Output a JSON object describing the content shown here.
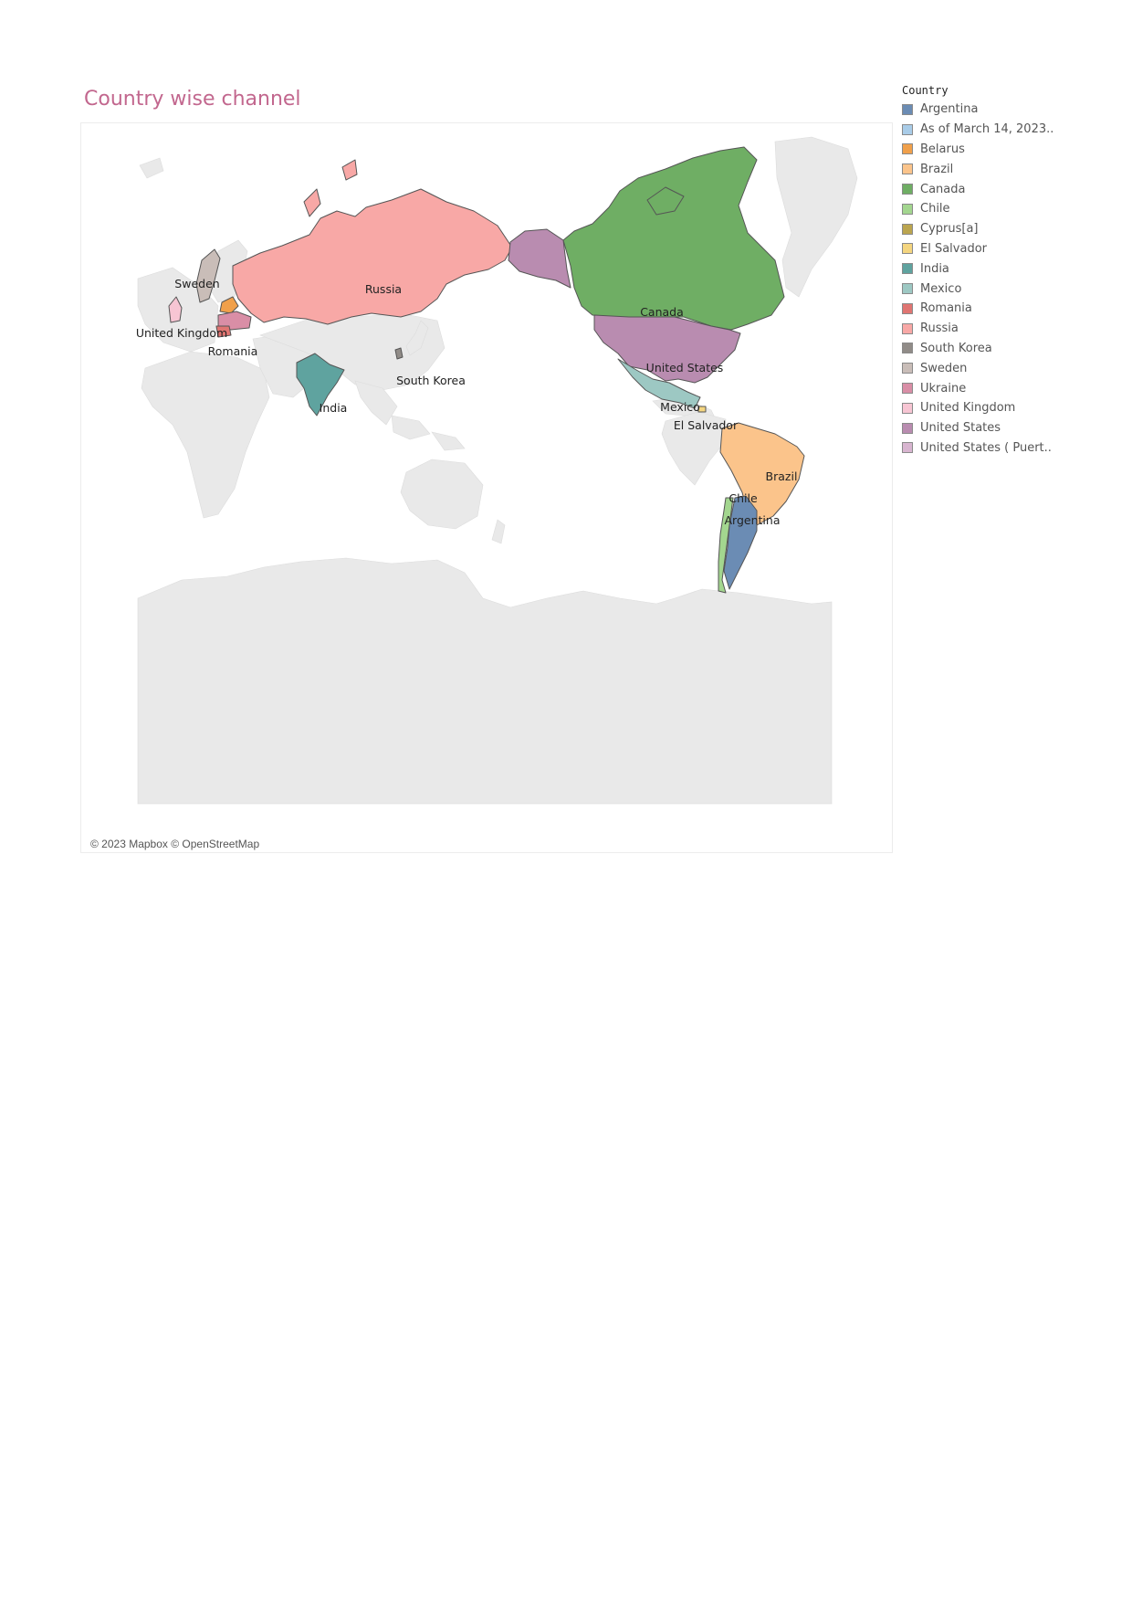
{
  "title": "Country wise channel",
  "attribution": "© 2023 Mapbox © OpenStreetMap",
  "legend": {
    "title": "Country",
    "items": [
      {
        "label": "Argentina",
        "color": "#6b8cb4"
      },
      {
        "label": "As of March 14, 2023..",
        "color": "#a9cce8"
      },
      {
        "label": "Belarus",
        "color": "#f0a04b"
      },
      {
        "label": "Brazil",
        "color": "#fbc48b"
      },
      {
        "label": "Canada",
        "color": "#6fae64"
      },
      {
        "label": "Chile",
        "color": "#a3d68f"
      },
      {
        "label": "Cyprus[a]",
        "color": "#bba54f"
      },
      {
        "label": "El Salvador",
        "color": "#f4d57f"
      },
      {
        "label": "India",
        "color": "#5fa39f"
      },
      {
        "label": "Mexico",
        "color": "#9dc8c3"
      },
      {
        "label": "Romania",
        "color": "#e07572"
      },
      {
        "label": "Russia",
        "color": "#f8a8a6"
      },
      {
        "label": "South Korea",
        "color": "#918c88"
      },
      {
        "label": "Sweden",
        "color": "#c9bdb8"
      },
      {
        "label": "Ukraine",
        "color": "#d98ea6"
      },
      {
        "label": "United Kingdom",
        "color": "#f7c5d3"
      },
      {
        "label": "United States",
        "color": "#b98cb0"
      },
      {
        "label": "United States ( Puert..",
        "color": "#d8b5d0"
      }
    ]
  },
  "map_labels": {
    "sweden": "Sweden",
    "uk": "United Kingdom",
    "romania": "Romania",
    "russia": "Russia",
    "south_korea": "South Korea",
    "india": "India",
    "canada": "Canada",
    "united_states": "United States",
    "mexico": "Mexico",
    "el_salvador": "El Salvador",
    "brazil": "Brazil",
    "chile": "Chile",
    "argentina": "Argentina"
  }
}
